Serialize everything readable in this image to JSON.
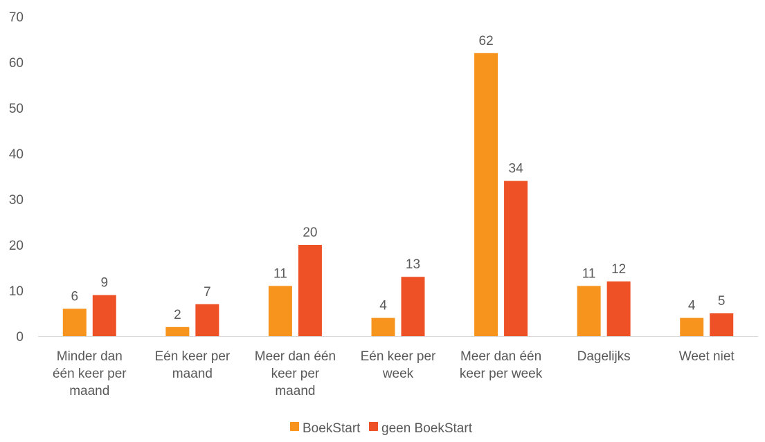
{
  "chart_data": {
    "type": "bar",
    "title": "",
    "xlabel": "",
    "ylabel": "",
    "ylim": [
      0,
      70
    ],
    "yticks": [
      0,
      10,
      20,
      30,
      40,
      50,
      60,
      70
    ],
    "grid": false,
    "legend_position": "bottom",
    "categories": [
      [
        "Minder dan",
        "één keer per",
        "maand"
      ],
      [
        "Eén keer per",
        "maand"
      ],
      [
        "Meer dan één",
        "keer per",
        "maand"
      ],
      [
        "Eén keer per",
        "week"
      ],
      [
        "Meer dan één",
        "keer per week"
      ],
      [
        "Dagelijks"
      ],
      [
        "Weet niet"
      ]
    ],
    "series": [
      {
        "name": "BoekStart",
        "color": "#F7941D",
        "values": [
          6,
          2,
          11,
          4,
          62,
          11,
          4
        ]
      },
      {
        "name": "geen BoekStart",
        "color": "#EE5126",
        "values": [
          9,
          7,
          20,
          13,
          34,
          12,
          5
        ]
      }
    ]
  }
}
